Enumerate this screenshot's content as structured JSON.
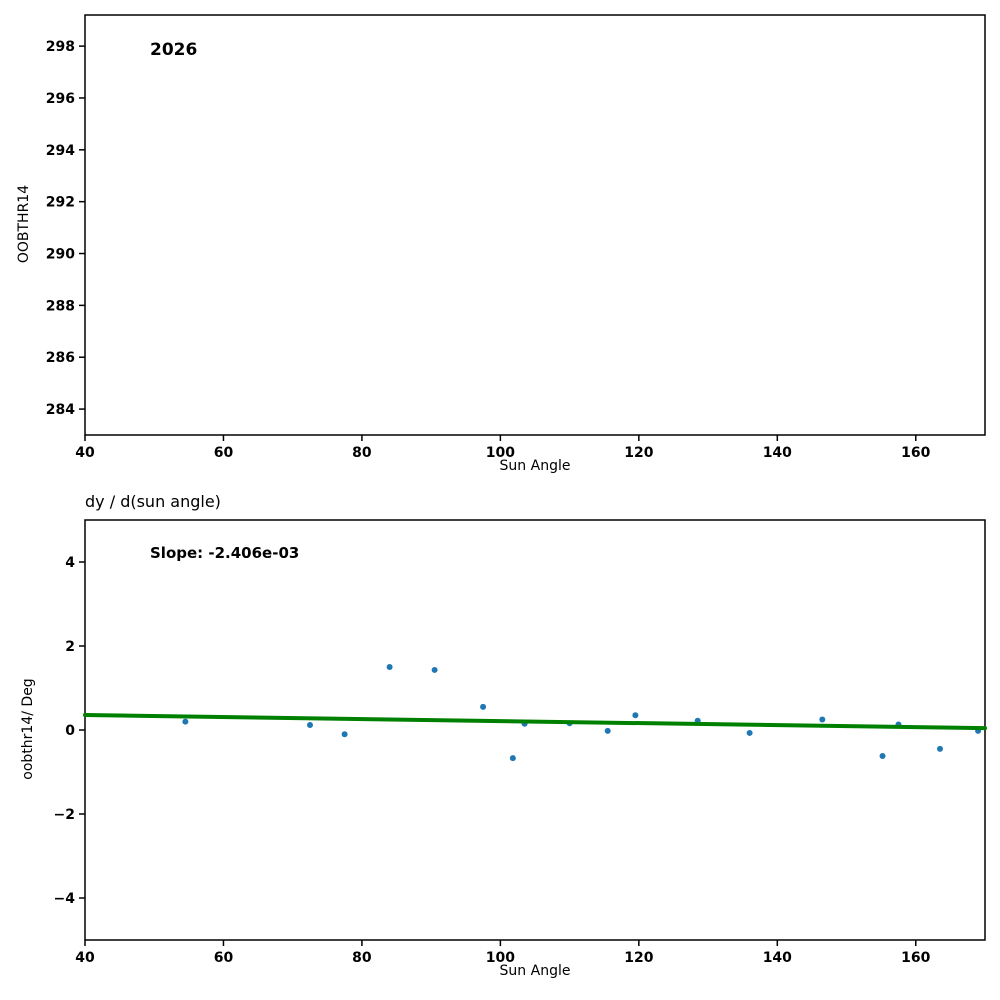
{
  "figure": {
    "background": "#ffffff"
  },
  "chart_data": [
    {
      "type": "scatter",
      "title": "",
      "annotation": "2026",
      "xlabel": "Sun Angle",
      "ylabel": "OOBTHR14",
      "xlim": [
        40,
        170
      ],
      "ylim": [
        283.0,
        299.2
      ],
      "xticks": [
        40,
        60,
        80,
        100,
        120,
        140,
        160
      ],
      "yticks": [
        284,
        286,
        288,
        290,
        292,
        294,
        296,
        298
      ],
      "grid": false,
      "legend": false,
      "point_color": "#1f77b4",
      "points": []
    },
    {
      "type": "scatter",
      "title": "dy / d(sun angle)",
      "annotation": "Slope: -2.406e-03",
      "xlabel": "Sun Angle",
      "ylabel": "oobthr14/ Deg",
      "xlim": [
        40,
        170
      ],
      "ylim": [
        -5,
        5
      ],
      "xticks": [
        40,
        60,
        80,
        100,
        120,
        140,
        160
      ],
      "yticks": [
        -4,
        -2,
        0,
        2,
        4
      ],
      "grid": false,
      "legend": false,
      "point_color": "#1f77b4",
      "points": [
        [
          54.5,
          0.2
        ],
        [
          72.5,
          0.12
        ],
        [
          77.5,
          -0.1
        ],
        [
          84.0,
          1.5
        ],
        [
          90.5,
          1.43
        ],
        [
          97.5,
          0.55
        ],
        [
          101.8,
          -0.67
        ],
        [
          103.5,
          0.15
        ],
        [
          110.0,
          0.16
        ],
        [
          115.5,
          -0.02
        ],
        [
          119.5,
          0.35
        ],
        [
          128.5,
          0.22
        ],
        [
          136.0,
          -0.07
        ],
        [
          146.5,
          0.25
        ],
        [
          155.2,
          -0.62
        ],
        [
          157.5,
          0.13
        ],
        [
          163.5,
          -0.45
        ],
        [
          169.0,
          -0.02
        ]
      ],
      "trend_line": {
        "slope": -0.002406,
        "intercept": 0.4526,
        "x_start": 40,
        "x_end": 170,
        "color": "#008000",
        "line_width": 4
      }
    }
  ]
}
